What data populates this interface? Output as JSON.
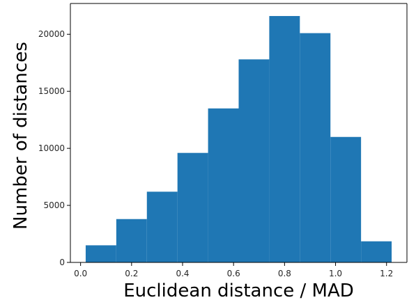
{
  "chart_data": {
    "type": "bar",
    "histogram": true,
    "title": "",
    "xlabel": "Euclidean distance / MAD",
    "ylabel": "Number of distances",
    "bin_edges": [
      0.02,
      0.14,
      0.26,
      0.38,
      0.5,
      0.62,
      0.74,
      0.86,
      0.98,
      1.1,
      1.22
    ],
    "values": [
      1500,
      3800,
      6200,
      9600,
      13500,
      17800,
      21600,
      20100,
      11000,
      1850
    ],
    "xlim": [
      -0.04,
      1.28
    ],
    "ylim": [
      0,
      22700
    ],
    "xticks": [
      0.0,
      0.2,
      0.4,
      0.6,
      0.8,
      1.0,
      1.2
    ],
    "xtick_labels": [
      "0.0",
      "0.2",
      "0.4",
      "0.6",
      "0.8",
      "1.0",
      "1.2"
    ],
    "yticks": [
      0,
      5000,
      10000,
      15000,
      20000
    ],
    "ytick_labels": [
      "0",
      "5000",
      "10000",
      "15000",
      "20000"
    ],
    "bar_color": "#1f77b4",
    "grid": false,
    "legend": "none"
  }
}
